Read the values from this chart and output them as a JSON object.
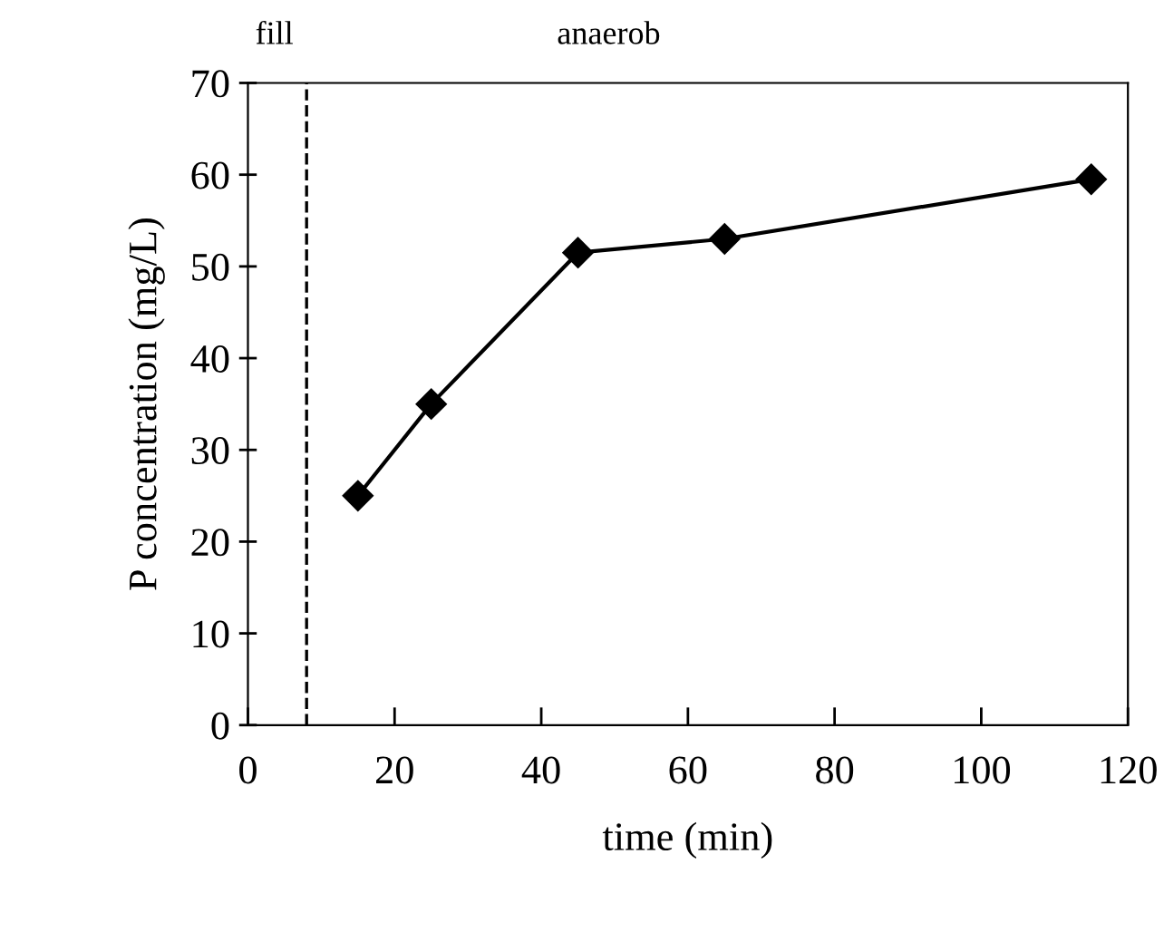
{
  "chart_data": {
    "type": "line",
    "xlabel": "time (min)",
    "ylabel": "P concentration (mg/L)",
    "x": [
      15,
      25,
      45,
      65,
      115
    ],
    "series": [
      {
        "color": "#000000",
        "values": [
          25,
          35,
          51.5,
          53,
          59.5
        ]
      }
    ],
    "marker": "diamond",
    "line_style": "solid",
    "xlim": [
      0,
      120
    ],
    "xticks": [
      0,
      20,
      40,
      60,
      80,
      100,
      120
    ],
    "ylim": [
      0,
      70
    ],
    "yticks": [
      0,
      10,
      20,
      30,
      40,
      50,
      60,
      70
    ],
    "ref_lines": [
      {
        "axis": "x",
        "value": 8,
        "color": "#000000",
        "line_style": "dashed"
      }
    ],
    "annotations": [
      "fill",
      "anaerob"
    ],
    "grid": false,
    "legend": false
  }
}
